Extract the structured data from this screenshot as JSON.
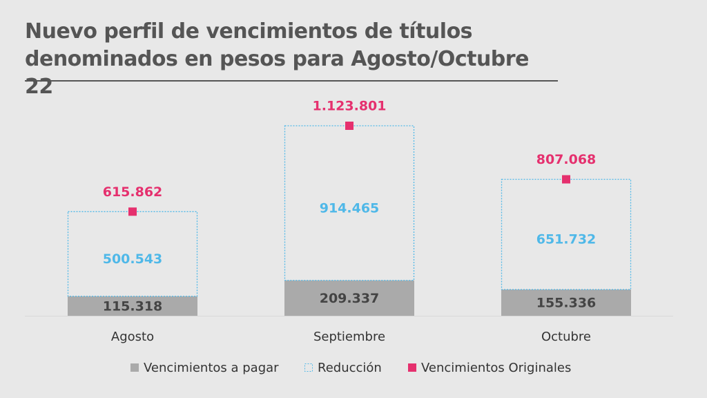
{
  "chart_data": {
    "type": "bar",
    "title": "Nuevo perfil de vencimientos de títulos denominados en pesos para Agosto/Octubre 22",
    "categories": [
      "Agosto",
      "Septiembre",
      "Octubre"
    ],
    "series": [
      {
        "name": "Vencimientos a pagar",
        "color": "#aaaaaa",
        "values": [
          115318,
          209337,
          155336
        ],
        "value_labels": [
          "115.318",
          "209.337",
          "155.336"
        ]
      },
      {
        "name": "Reducción",
        "color": "#4fb8e8",
        "values": [
          500543,
          914465,
          651732
        ],
        "value_labels": [
          "500.543",
          "914.465",
          "651.732"
        ]
      },
      {
        "name": "Vencimientos Originales",
        "color": "#e5306e",
        "values": [
          615862,
          1123801,
          807068
        ],
        "value_labels": [
          "615.862",
          "1.123.801",
          "807.068"
        ]
      }
    ],
    "stacked": true,
    "legend": "bottom"
  }
}
